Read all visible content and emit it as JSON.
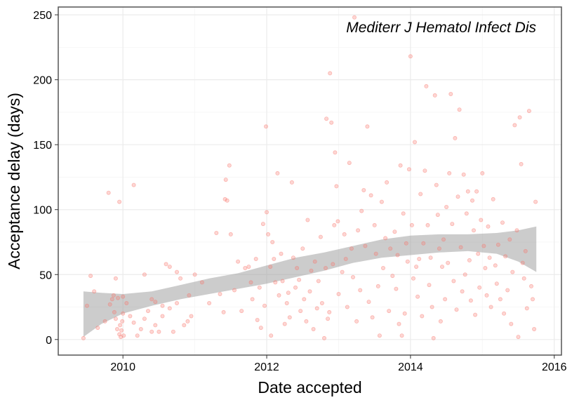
{
  "chart_data": {
    "type": "scatter",
    "title": "",
    "annotation": "Mediterr J Hematol Infect Dis",
    "xlabel": "Date accepted",
    "ylabel": "Acceptance delay (days)",
    "x_ticks": [
      2010,
      2012,
      2014,
      2016
    ],
    "y_ticks": [
      0,
      50,
      100,
      150,
      200,
      250
    ],
    "xlim": [
      2009.1,
      2016.1
    ],
    "ylim": [
      -12,
      256
    ],
    "grid": true,
    "colors": {
      "points": "#f8766d",
      "band": "#999999",
      "panel_border": "#555555",
      "grid_major": "#ebebeb",
      "grid_minor": "#f5f5f5"
    },
    "smooth_band": [
      {
        "x": 2009.45,
        "lower": 2,
        "upper": 37
      },
      {
        "x": 2009.7,
        "lower": 12,
        "upper": 36
      },
      {
        "x": 2010.0,
        "lower": 20,
        "upper": 35
      },
      {
        "x": 2010.4,
        "lower": 26,
        "upper": 37
      },
      {
        "x": 2010.8,
        "lower": 31,
        "upper": 42
      },
      {
        "x": 2011.2,
        "lower": 35,
        "upper": 47
      },
      {
        "x": 2011.6,
        "lower": 39,
        "upper": 51
      },
      {
        "x": 2012.0,
        "lower": 43,
        "upper": 57
      },
      {
        "x": 2012.4,
        "lower": 48,
        "upper": 63
      },
      {
        "x": 2012.8,
        "lower": 53,
        "upper": 67
      },
      {
        "x": 2013.2,
        "lower": 59,
        "upper": 72
      },
      {
        "x": 2013.6,
        "lower": 63,
        "upper": 77
      },
      {
        "x": 2014.0,
        "lower": 65,
        "upper": 80
      },
      {
        "x": 2014.4,
        "lower": 67,
        "upper": 81
      },
      {
        "x": 2014.8,
        "lower": 68,
        "upper": 81
      },
      {
        "x": 2015.2,
        "lower": 66,
        "upper": 82
      },
      {
        "x": 2015.5,
        "lower": 60,
        "upper": 84
      },
      {
        "x": 2015.75,
        "lower": 52,
        "upper": 87
      }
    ],
    "points": [
      [
        2009.45,
        1
      ],
      [
        2009.5,
        26
      ],
      [
        2009.55,
        49
      ],
      [
        2009.6,
        37
      ],
      [
        2009.65,
        9
      ],
      [
        2009.75,
        14
      ],
      [
        2009.8,
        113
      ],
      [
        2009.82,
        27
      ],
      [
        2009.85,
        31
      ],
      [
        2009.87,
        34
      ],
      [
        2009.88,
        21
      ],
      [
        2009.9,
        16
      ],
      [
        2009.9,
        47
      ],
      [
        2009.92,
        8
      ],
      [
        2009.93,
        32
      ],
      [
        2009.95,
        106
      ],
      [
        2009.95,
        4
      ],
      [
        2009.96,
        11
      ],
      [
        2009.97,
        2
      ],
      [
        2009.98,
        7
      ],
      [
        2009.99,
        14
      ],
      [
        2010.0,
        20
      ],
      [
        2010.0,
        33
      ],
      [
        2010.01,
        3
      ],
      [
        2010.05,
        28
      ],
      [
        2010.1,
        18
      ],
      [
        2010.15,
        13
      ],
      [
        2010.15,
        119
      ],
      [
        2010.2,
        3
      ],
      [
        2010.25,
        8
      ],
      [
        2010.3,
        16
      ],
      [
        2010.3,
        50
      ],
      [
        2010.35,
        22
      ],
      [
        2010.4,
        6
      ],
      [
        2010.4,
        31
      ],
      [
        2010.45,
        29
      ],
      [
        2010.45,
        11
      ],
      [
        2010.5,
        6
      ],
      [
        2010.55,
        26
      ],
      [
        2010.55,
        18
      ],
      [
        2010.6,
        58
      ],
      [
        2010.65,
        56
      ],
      [
        2010.65,
        24
      ],
      [
        2010.7,
        6
      ],
      [
        2010.75,
        52
      ],
      [
        2010.75,
        28
      ],
      [
        2010.8,
        47
      ],
      [
        2010.85,
        11
      ],
      [
        2010.9,
        14
      ],
      [
        2010.92,
        34
      ],
      [
        2010.95,
        18
      ],
      [
        2011.0,
        50
      ],
      [
        2011.1,
        44
      ],
      [
        2011.2,
        28
      ],
      [
        2011.3,
        82
      ],
      [
        2011.35,
        35
      ],
      [
        2011.4,
        21
      ],
      [
        2011.42,
        108
      ],
      [
        2011.43,
        123
      ],
      [
        2011.45,
        107
      ],
      [
        2011.48,
        134
      ],
      [
        2011.5,
        81
      ],
      [
        2011.55,
        38
      ],
      [
        2011.6,
        60
      ],
      [
        2011.65,
        22
      ],
      [
        2011.7,
        55
      ],
      [
        2011.75,
        56
      ],
      [
        2011.78,
        44
      ],
      [
        2011.8,
        31
      ],
      [
        2011.85,
        62
      ],
      [
        2011.87,
        15
      ],
      [
        2011.9,
        40
      ],
      [
        2011.92,
        9
      ],
      [
        2011.95,
        89
      ],
      [
        2011.97,
        26
      ],
      [
        2011.99,
        164
      ],
      [
        2012.0,
        98
      ],
      [
        2012.02,
        81
      ],
      [
        2012.05,
        56
      ],
      [
        2012.06,
        3
      ],
      [
        2012.08,
        75
      ],
      [
        2012.1,
        62
      ],
      [
        2012.12,
        44
      ],
      [
        2012.15,
        128
      ],
      [
        2012.17,
        34
      ],
      [
        2012.2,
        66
      ],
      [
        2012.22,
        45
      ],
      [
        2012.25,
        12
      ],
      [
        2012.28,
        28
      ],
      [
        2012.3,
        36
      ],
      [
        2012.32,
        17
      ],
      [
        2012.35,
        121
      ],
      [
        2012.37,
        63
      ],
      [
        2012.4,
        40
      ],
      [
        2012.42,
        55
      ],
      [
        2012.45,
        46
      ],
      [
        2012.47,
        22
      ],
      [
        2012.5,
        70
      ],
      [
        2012.52,
        31
      ],
      [
        2012.55,
        14
      ],
      [
        2012.57,
        92
      ],
      [
        2012.6,
        37
      ],
      [
        2012.62,
        53
      ],
      [
        2012.65,
        8
      ],
      [
        2012.67,
        60
      ],
      [
        2012.7,
        24
      ],
      [
        2012.72,
        45
      ],
      [
        2012.75,
        79
      ],
      [
        2012.77,
        28
      ],
      [
        2012.8,
        1
      ],
      [
        2012.82,
        55
      ],
      [
        2012.83,
        170
      ],
      [
        2012.85,
        16
      ],
      [
        2012.87,
        21
      ],
      [
        2012.88,
        205
      ],
      [
        2012.9,
        167
      ],
      [
        2012.92,
        58
      ],
      [
        2012.94,
        88
      ],
      [
        2012.95,
        144
      ],
      [
        2012.97,
        118
      ],
      [
        2012.99,
        91
      ],
      [
        2013.0,
        35
      ],
      [
        2013.05,
        52
      ],
      [
        2013.08,
        81
      ],
      [
        2013.1,
        62
      ],
      [
        2013.12,
        25
      ],
      [
        2013.15,
        136
      ],
      [
        2013.18,
        70
      ],
      [
        2013.2,
        48
      ],
      [
        2013.22,
        248
      ],
      [
        2013.25,
        14
      ],
      [
        2013.27,
        84
      ],
      [
        2013.3,
        38
      ],
      [
        2013.32,
        99
      ],
      [
        2013.35,
        115
      ],
      [
        2013.37,
        72
      ],
      [
        2013.4,
        164
      ],
      [
        2013.42,
        29
      ],
      [
        2013.45,
        111
      ],
      [
        2013.47,
        17
      ],
      [
        2013.5,
        88
      ],
      [
        2013.52,
        66
      ],
      [
        2013.55,
        41
      ],
      [
        2013.57,
        3
      ],
      [
        2013.6,
        106
      ],
      [
        2013.62,
        55
      ],
      [
        2013.65,
        78
      ],
      [
        2013.67,
        121
      ],
      [
        2013.7,
        22
      ],
      [
        2013.72,
        70
      ],
      [
        2013.75,
        49
      ],
      [
        2013.78,
        83
      ],
      [
        2013.8,
        39
      ],
      [
        2013.82,
        65
      ],
      [
        2013.84,
        12
      ],
      [
        2013.86,
        134
      ],
      [
        2013.88,
        3
      ],
      [
        2013.9,
        97
      ],
      [
        2013.92,
        20
      ],
      [
        2013.94,
        74
      ],
      [
        2013.96,
        60
      ],
      [
        2013.98,
        131
      ],
      [
        2014.0,
        218
      ],
      [
        2014.02,
        88
      ],
      [
        2014.04,
        47
      ],
      [
        2014.06,
        152
      ],
      [
        2014.08,
        56
      ],
      [
        2014.1,
        33
      ],
      [
        2014.12,
        62
      ],
      [
        2014.14,
        112
      ],
      [
        2014.16,
        18
      ],
      [
        2014.18,
        74
      ],
      [
        2014.2,
        130
      ],
      [
        2014.22,
        195
      ],
      [
        2014.24,
        88
      ],
      [
        2014.26,
        42
      ],
      [
        2014.28,
        63
      ],
      [
        2014.3,
        25
      ],
      [
        2014.32,
        1
      ],
      [
        2014.34,
        188
      ],
      [
        2014.36,
        119
      ],
      [
        2014.38,
        96
      ],
      [
        2014.4,
        70
      ],
      [
        2014.42,
        14
      ],
      [
        2014.44,
        56
      ],
      [
        2014.46,
        77
      ],
      [
        2014.48,
        31
      ],
      [
        2014.5,
        102
      ],
      [
        2014.52,
        59
      ],
      [
        2014.54,
        128
      ],
      [
        2014.56,
        189
      ],
      [
        2014.58,
        89
      ],
      [
        2014.6,
        45
      ],
      [
        2014.62,
        155
      ],
      [
        2014.64,
        23
      ],
      [
        2014.66,
        110
      ],
      [
        2014.68,
        177
      ],
      [
        2014.7,
        71
      ],
      [
        2014.72,
        37
      ],
      [
        2014.74,
        127
      ],
      [
        2014.76,
        50
      ],
      [
        2014.78,
        97
      ],
      [
        2014.8,
        114
      ],
      [
        2014.82,
        61
      ],
      [
        2014.84,
        30
      ],
      [
        2014.86,
        107
      ],
      [
        2014.88,
        84
      ],
      [
        2014.9,
        19
      ],
      [
        2014.92,
        114
      ],
      [
        2014.94,
        66
      ],
      [
        2014.96,
        40
      ],
      [
        2014.98,
        92
      ],
      [
        2015.0,
        128
      ],
      [
        2015.02,
        72
      ],
      [
        2015.04,
        55
      ],
      [
        2015.06,
        34
      ],
      [
        2015.08,
        87
      ],
      [
        2015.1,
        63
      ],
      [
        2015.12,
        25
      ],
      [
        2015.15,
        108
      ],
      [
        2015.18,
        57
      ],
      [
        2015.2,
        43
      ],
      [
        2015.22,
        73
      ],
      [
        2015.25,
        31
      ],
      [
        2015.28,
        90
      ],
      [
        2015.3,
        20
      ],
      [
        2015.32,
        64
      ],
      [
        2015.35,
        38
      ],
      [
        2015.38,
        77
      ],
      [
        2015.4,
        12
      ],
      [
        2015.42,
        52
      ],
      [
        2015.45,
        165
      ],
      [
        2015.48,
        84
      ],
      [
        2015.5,
        2
      ],
      [
        2015.52,
        171
      ],
      [
        2015.54,
        135
      ],
      [
        2015.56,
        59
      ],
      [
        2015.58,
        47
      ],
      [
        2015.6,
        68
      ],
      [
        2015.62,
        24
      ],
      [
        2015.65,
        176
      ],
      [
        2015.68,
        41
      ],
      [
        2015.7,
        31
      ],
      [
        2015.72,
        8
      ],
      [
        2015.74,
        106
      ]
    ]
  }
}
